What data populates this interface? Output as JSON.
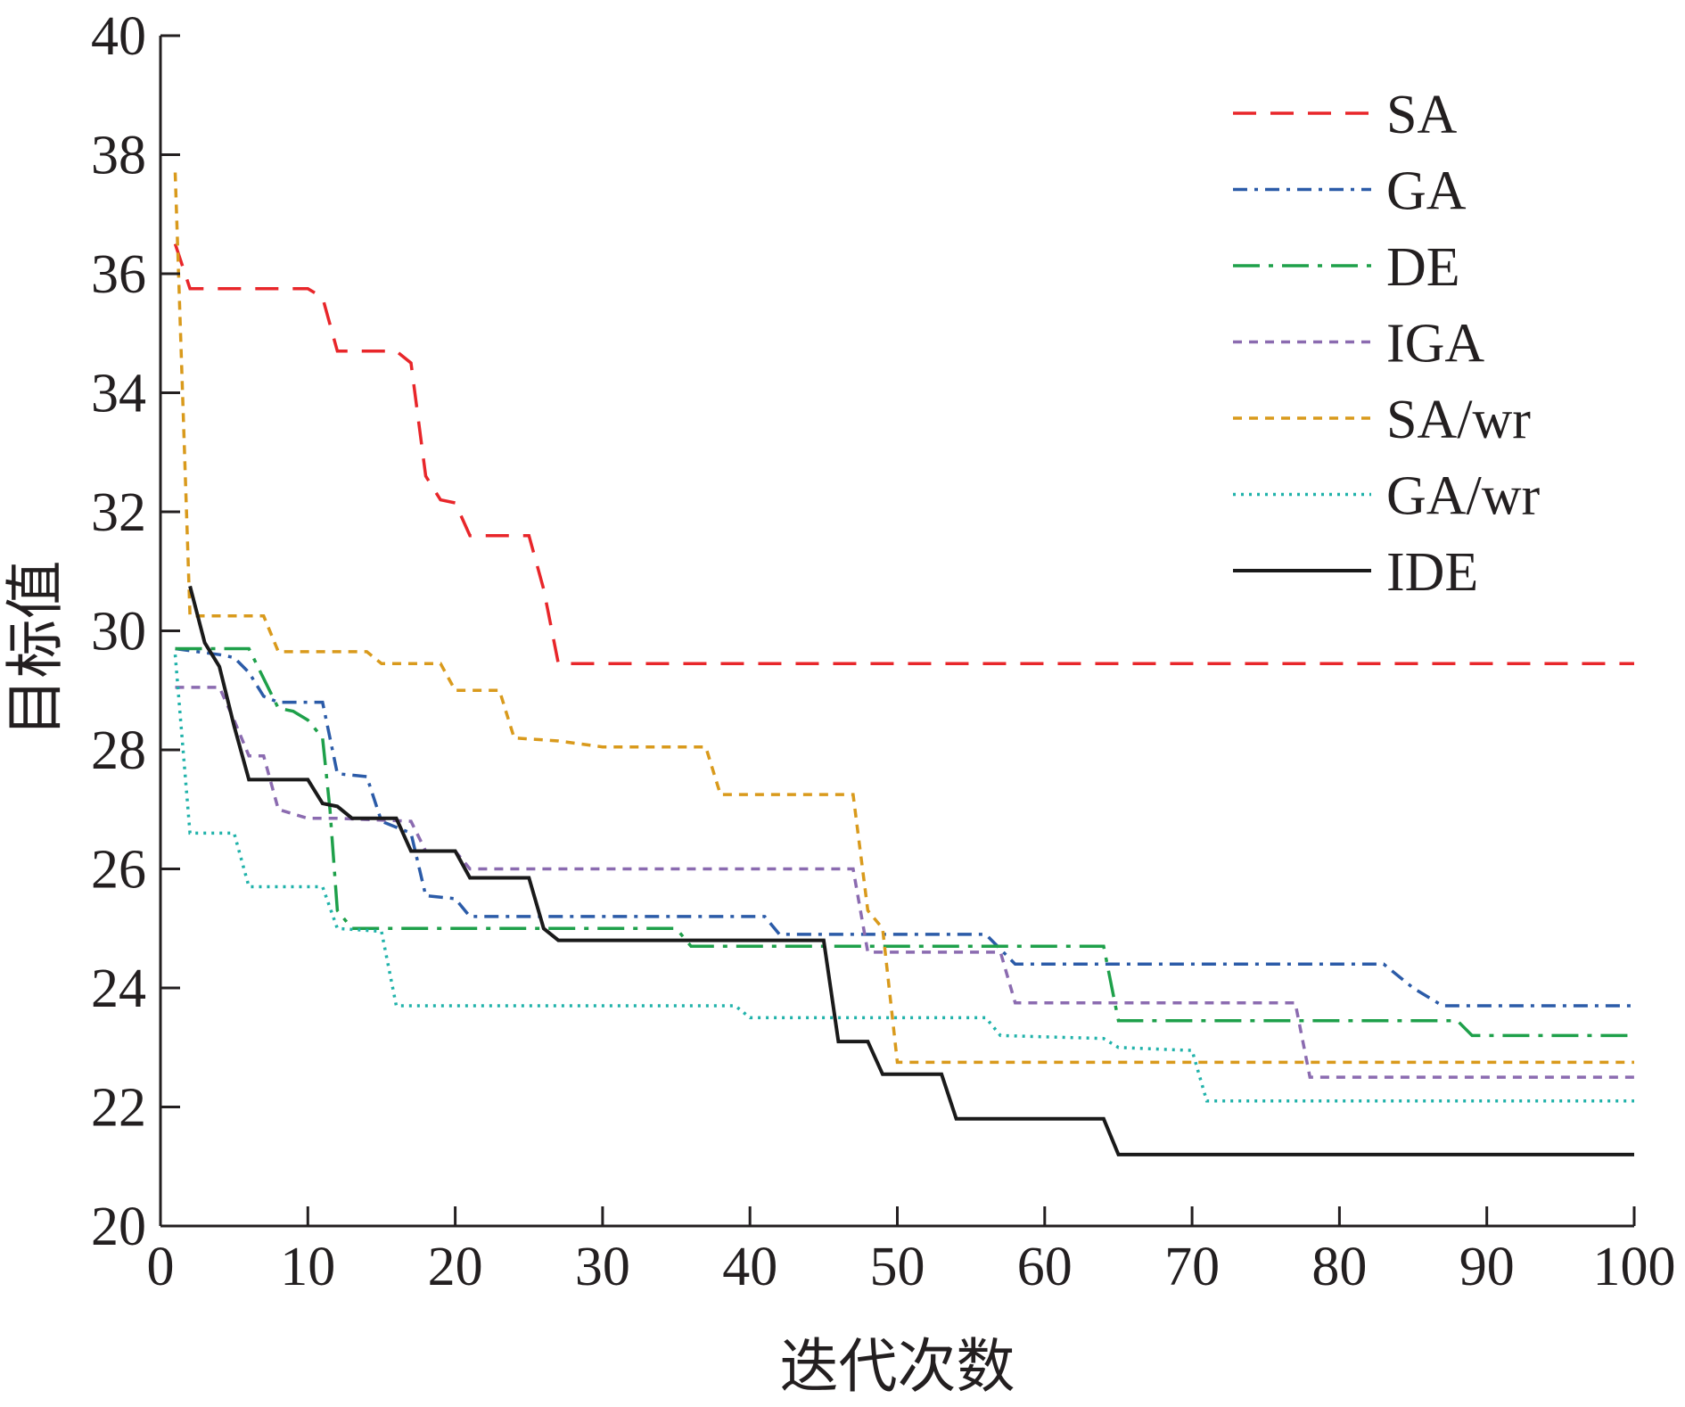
{
  "chart_data": {
    "type": "line",
    "title": "",
    "xlabel": "迭代次数",
    "ylabel": "目标值",
    "xlim": [
      0,
      100
    ],
    "ylim": [
      20,
      40
    ],
    "xticks": [
      0,
      10,
      20,
      30,
      40,
      50,
      60,
      70,
      80,
      90,
      100
    ],
    "yticks": [
      20,
      22,
      24,
      26,
      28,
      30,
      32,
      34,
      36,
      38,
      40
    ],
    "grid": false,
    "legend_position": "top-right",
    "series": [
      {
        "name": "SA",
        "color": "#e8262a",
        "dash": "dashed",
        "points": [
          [
            1,
            36.5
          ],
          [
            2,
            35.75
          ],
          [
            10,
            35.75
          ],
          [
            11,
            35.6
          ],
          [
            12,
            34.7
          ],
          [
            15,
            34.7
          ],
          [
            16,
            34.7
          ],
          [
            17,
            34.5
          ],
          [
            18,
            32.6
          ],
          [
            19,
            32.2
          ],
          [
            20,
            32.15
          ],
          [
            21,
            31.6
          ],
          [
            25,
            31.6
          ],
          [
            26,
            30.7
          ],
          [
            27,
            29.45
          ],
          [
            100,
            29.45
          ]
        ]
      },
      {
        "name": "GA",
        "color": "#2b5ba8",
        "dash": "dashdot",
        "points": [
          [
            1,
            29.7
          ],
          [
            4,
            29.6
          ],
          [
            5,
            29.55
          ],
          [
            6,
            29.3
          ],
          [
            7,
            28.9
          ],
          [
            8,
            28.8
          ],
          [
            11,
            28.8
          ],
          [
            12,
            27.6
          ],
          [
            14,
            27.55
          ],
          [
            15,
            26.8
          ],
          [
            17,
            26.6
          ],
          [
            18,
            25.55
          ],
          [
            20,
            25.5
          ],
          [
            21,
            25.2
          ],
          [
            41,
            25.2
          ],
          [
            42,
            24.9
          ],
          [
            56,
            24.9
          ],
          [
            58,
            24.4
          ],
          [
            83,
            24.4
          ],
          [
            85,
            24.0
          ],
          [
            87,
            23.7
          ],
          [
            100,
            23.7
          ]
        ]
      },
      {
        "name": "DE",
        "color": "#1ea04a",
        "dash": "longdashdot",
        "points": [
          [
            1,
            29.7
          ],
          [
            6,
            29.7
          ],
          [
            7,
            29.2
          ],
          [
            8,
            28.7
          ],
          [
            9,
            28.65
          ],
          [
            10,
            28.5
          ],
          [
            11,
            28.2
          ],
          [
            11.5,
            27.0
          ],
          [
            12,
            25.3
          ],
          [
            13,
            25.0
          ],
          [
            35,
            25.0
          ],
          [
            36,
            24.7
          ],
          [
            64,
            24.7
          ],
          [
            65,
            23.45
          ],
          [
            88,
            23.45
          ],
          [
            89,
            23.2
          ],
          [
            100,
            23.2
          ]
        ]
      },
      {
        "name": "IGA",
        "color": "#8b6bb0",
        "dash": "shortdash",
        "points": [
          [
            1,
            29.05
          ],
          [
            4,
            29.05
          ],
          [
            5,
            28.5
          ],
          [
            6,
            27.9
          ],
          [
            7,
            27.9
          ],
          [
            8,
            27.0
          ],
          [
            10,
            26.85
          ],
          [
            12,
            26.85
          ],
          [
            17,
            26.8
          ],
          [
            18,
            26.3
          ],
          [
            20,
            26.3
          ],
          [
            21,
            26.0
          ],
          [
            47,
            26.0
          ],
          [
            48,
            24.6
          ],
          [
            57,
            24.6
          ],
          [
            58,
            23.75
          ],
          [
            77,
            23.75
          ],
          [
            78,
            22.5
          ],
          [
            100,
            22.5
          ]
        ]
      },
      {
        "name": "SA/wr",
        "color": "#d99a1c",
        "dash": "shortdash",
        "points": [
          [
            1,
            37.7
          ],
          [
            2,
            30.25
          ],
          [
            7,
            30.25
          ],
          [
            8,
            29.65
          ],
          [
            14,
            29.65
          ],
          [
            15,
            29.45
          ],
          [
            19,
            29.45
          ],
          [
            20,
            29.0
          ],
          [
            23,
            29.0
          ],
          [
            24,
            28.2
          ],
          [
            27,
            28.15
          ],
          [
            30,
            28.05
          ],
          [
            37,
            28.05
          ],
          [
            38,
            27.25
          ],
          [
            47,
            27.25
          ],
          [
            48,
            25.3
          ],
          [
            49,
            25.0
          ],
          [
            50,
            22.75
          ],
          [
            100,
            22.75
          ]
        ]
      },
      {
        "name": "GA/wr",
        "color": "#20b2aa",
        "dash": "dotted",
        "points": [
          [
            1,
            29.6
          ],
          [
            2,
            26.6
          ],
          [
            5,
            26.6
          ],
          [
            6,
            25.7
          ],
          [
            11,
            25.7
          ],
          [
            12,
            25.0
          ],
          [
            15,
            24.95
          ],
          [
            16,
            23.7
          ],
          [
            39,
            23.7
          ],
          [
            40,
            23.5
          ],
          [
            56,
            23.5
          ],
          [
            57,
            23.2
          ],
          [
            64,
            23.15
          ],
          [
            65,
            23.0
          ],
          [
            70,
            22.95
          ],
          [
            71,
            22.1
          ],
          [
            100,
            22.1
          ]
        ]
      },
      {
        "name": "IDE",
        "color": "#1a1a1a",
        "dash": "solid",
        "points": [
          [
            2,
            30.75
          ],
          [
            3,
            29.8
          ],
          [
            4,
            29.4
          ],
          [
            5,
            28.4
          ],
          [
            6,
            27.5
          ],
          [
            10,
            27.5
          ],
          [
            11,
            27.1
          ],
          [
            12,
            27.05
          ],
          [
            13,
            26.85
          ],
          [
            16,
            26.85
          ],
          [
            17,
            26.3
          ],
          [
            20,
            26.3
          ],
          [
            21,
            25.85
          ],
          [
            25,
            25.85
          ],
          [
            26,
            25.0
          ],
          [
            27,
            24.8
          ],
          [
            45,
            24.8
          ],
          [
            46,
            23.1
          ],
          [
            48,
            23.1
          ],
          [
            49,
            22.55
          ],
          [
            53,
            22.55
          ],
          [
            54,
            21.8
          ],
          [
            64,
            21.8
          ],
          [
            65,
            21.2
          ],
          [
            100,
            21.2
          ]
        ]
      }
    ]
  }
}
